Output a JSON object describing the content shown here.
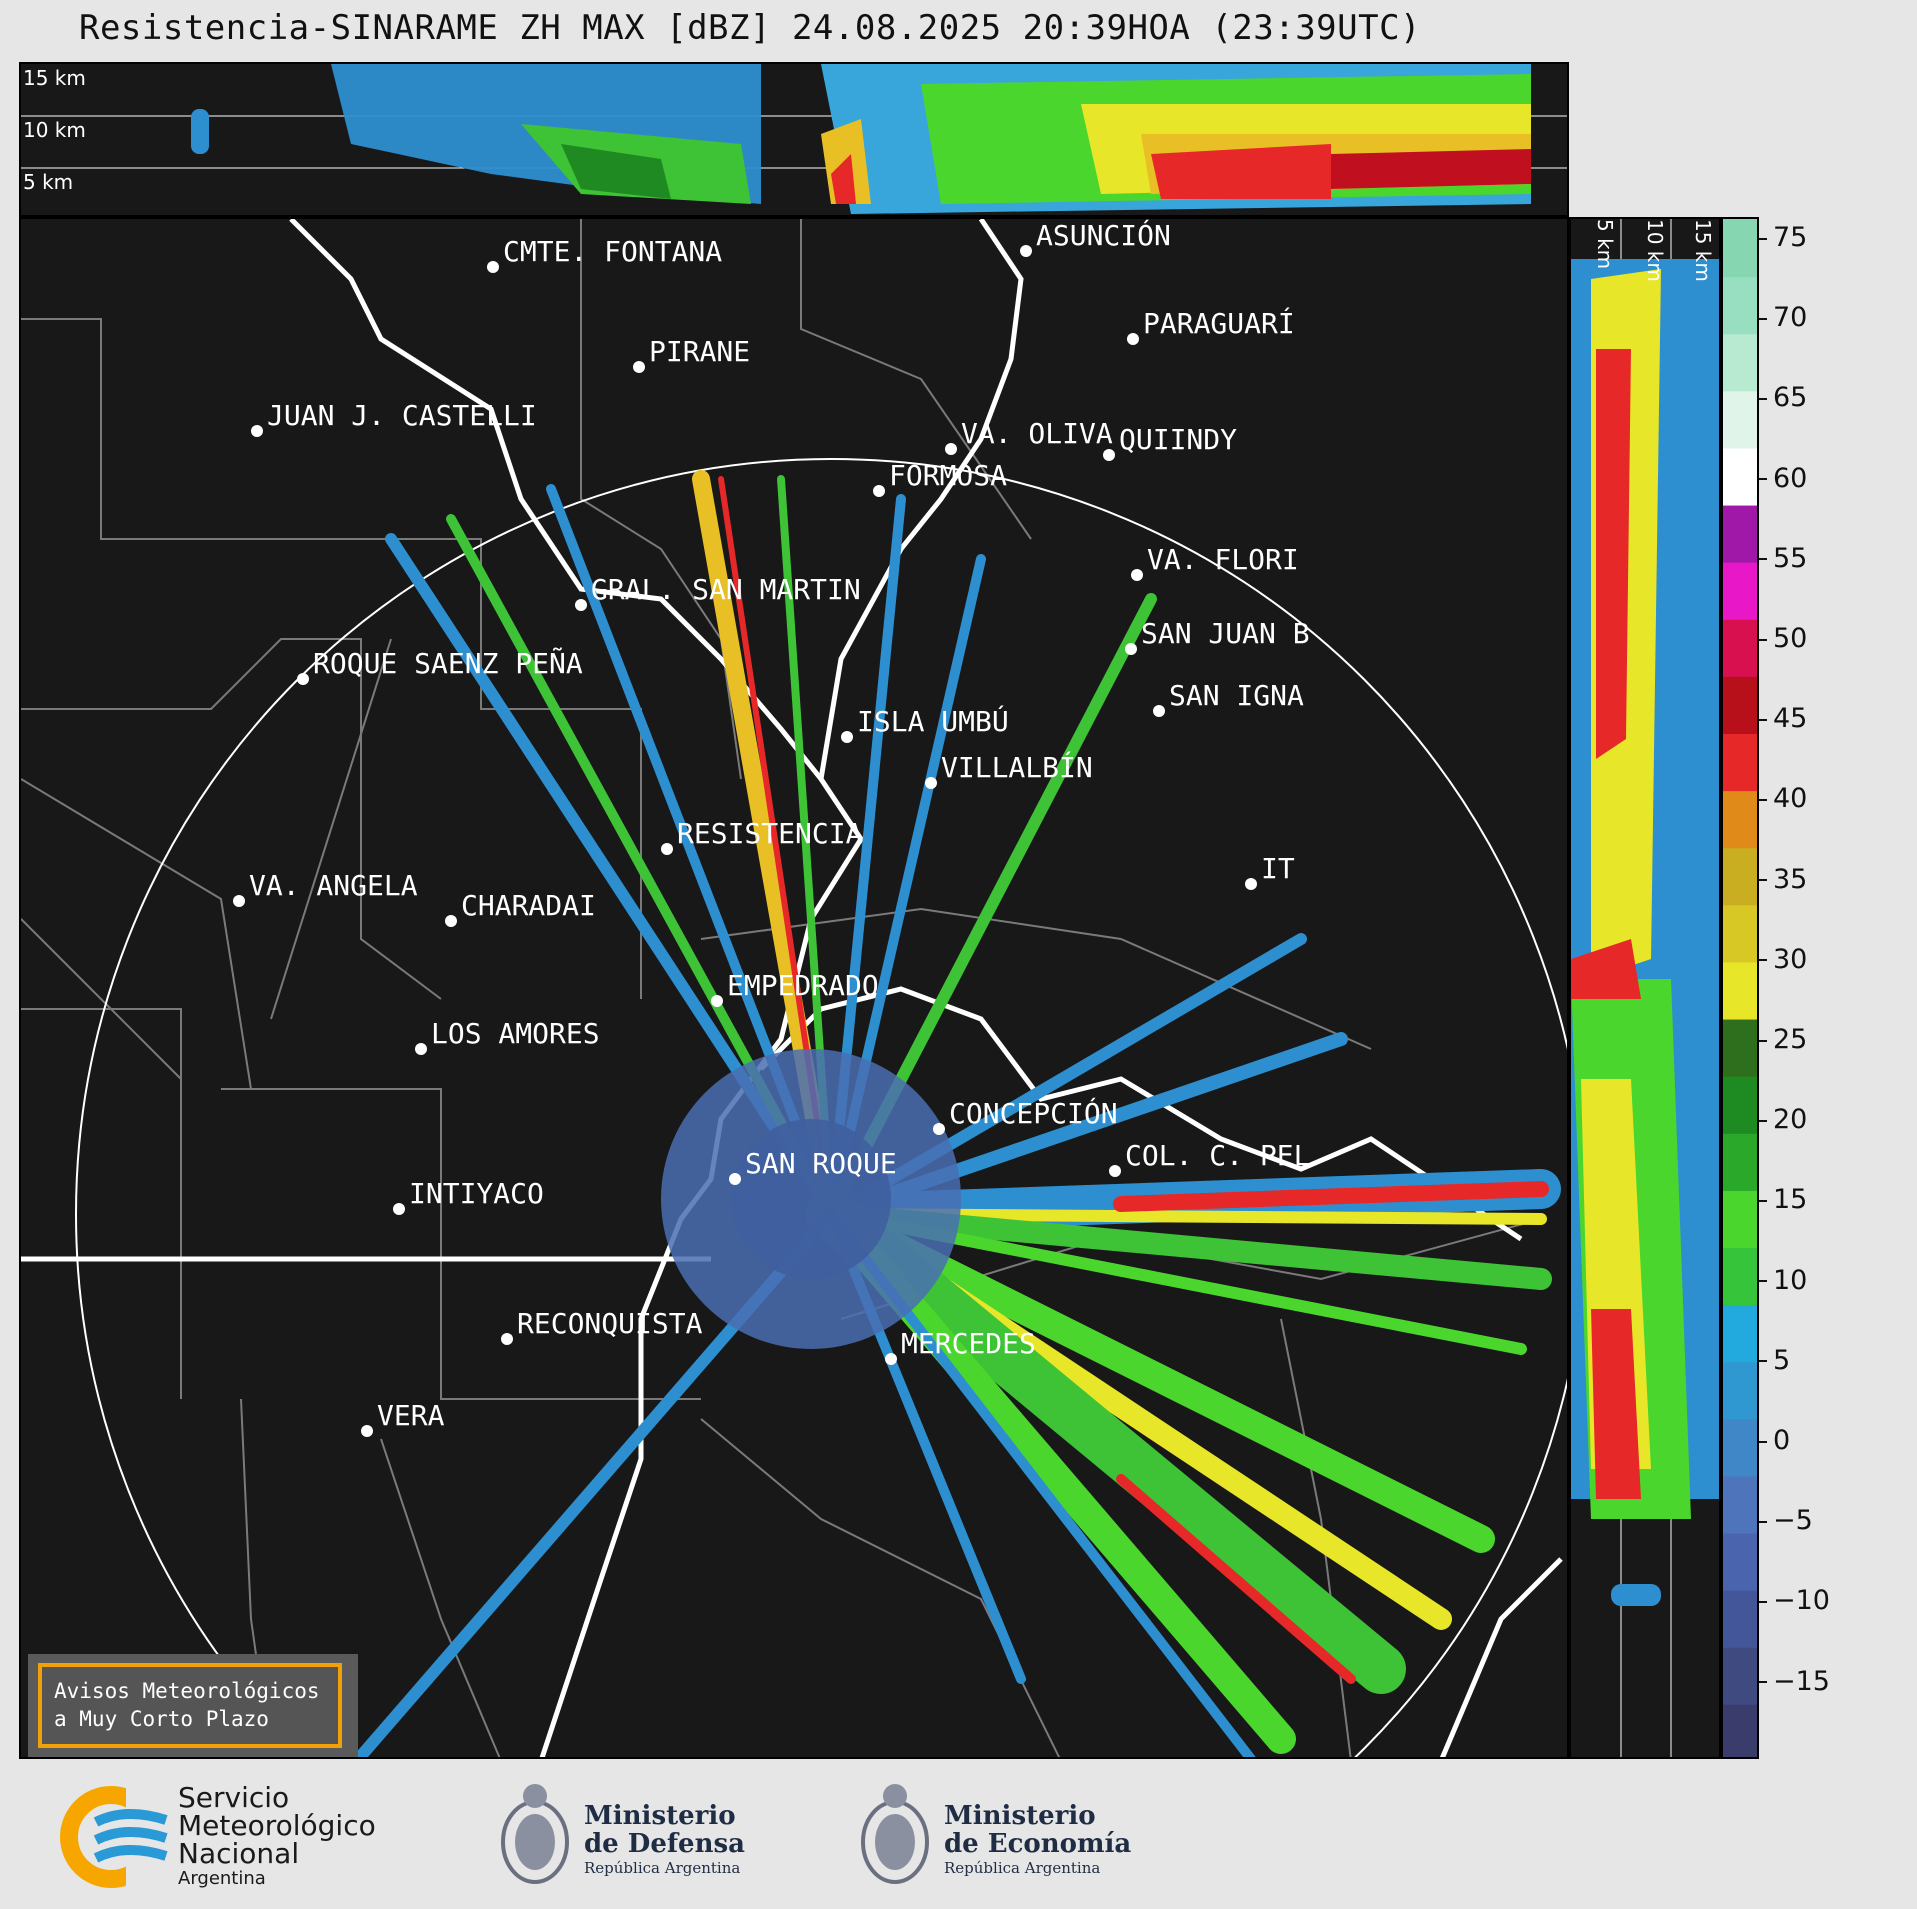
{
  "title": "Resistencia-SINARAME ZH MAX [dBZ] 24.08.2025 20:39HOA (23:39UTC)",
  "top_panel": {
    "height_labels": [
      "15 km",
      "10 km",
      "5 km"
    ]
  },
  "side_panel": {
    "height_labels": [
      "5 km",
      "10 km",
      "15 km"
    ]
  },
  "colorbar": {
    "ticks": [
      "75",
      "70",
      "65",
      "60",
      "55",
      "50",
      "45",
      "40",
      "35",
      "30",
      "25",
      "20",
      "15",
      "10",
      "5",
      "0",
      "−5",
      "−10",
      "−15"
    ],
    "colors": [
      "#3a3d6b",
      "#3f4a80",
      "#44569a",
      "#4a65ae",
      "#4e75bb",
      "#3f87c6",
      "#2f98d0",
      "#22a9de",
      "#36c53a",
      "#4ad62d",
      "#2aa82a",
      "#1e8a22",
      "#2d6f1d",
      "#e8e628",
      "#d8c825",
      "#c8ae20",
      "#e08a1a",
      "#e62828",
      "#b8101b",
      "#d81050",
      "#e818c8",
      "#a018a8",
      "#ffffff",
      "#e0f4ea",
      "#b8ead2",
      "#98dec0",
      "#86d6b2"
    ]
  },
  "cities": [
    {
      "name": "CMTE. FONTANA"
    },
    {
      "name": "ASUNCIÓN"
    },
    {
      "name": "PARAGUARÍ"
    },
    {
      "name": "PIRANE"
    },
    {
      "name": "JUAN J. CASTELLI"
    },
    {
      "name": "VA. OLIVA"
    },
    {
      "name": "QUIINDY"
    },
    {
      "name": "FORMOSA"
    },
    {
      "name": "VA. FLORI"
    },
    {
      "name": "GRAL. SAN MARTIN"
    },
    {
      "name": "SAN JUAN B"
    },
    {
      "name": "ROQUE SAENZ PEÑA"
    },
    {
      "name": "SAN IGNA"
    },
    {
      "name": "ISLA UMBÚ"
    },
    {
      "name": "VILLALBÍN"
    },
    {
      "name": "RESISTENCIA"
    },
    {
      "name": "VA. ANGELA"
    },
    {
      "name": "CHARADAI"
    },
    {
      "name": "IT"
    },
    {
      "name": "EMPEDRADO"
    },
    {
      "name": "LOS AMORES"
    },
    {
      "name": "CONCEPCIÓN"
    },
    {
      "name": "SAN ROQUE"
    },
    {
      "name": "COL. C. PEL"
    },
    {
      "name": "INTIYACO"
    },
    {
      "name": "RECONQUISTA"
    },
    {
      "name": "MERCEDES"
    },
    {
      "name": "VERA"
    }
  ],
  "aviso": {
    "line1": "Avisos Meteorológicos",
    "line2": "a Muy Corto Plazo"
  },
  "footer": {
    "smn": {
      "line1": "Servicio",
      "line2": "Meteorológico",
      "line3": "Nacional",
      "line4": "Argentina"
    },
    "defensa": {
      "line1": "Ministerio",
      "line2": "de Defensa",
      "line3": "República Argentina"
    },
    "economia": {
      "line1": "Ministerio",
      "line2": "de Economía",
      "line3": "República Argentina"
    },
    "colors": {
      "smn_orange": "#f7a600",
      "smn_blue": "#2a9ad6",
      "ministry_navy": "#1f2d44"
    }
  }
}
